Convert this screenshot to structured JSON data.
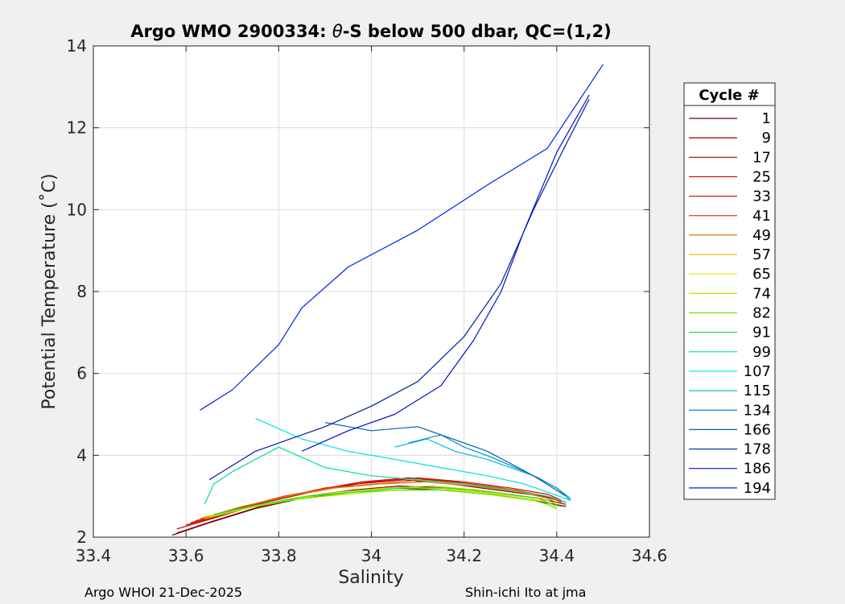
{
  "chart_data": {
    "type": "line",
    "title": "Argo WMO 2900334: θ-S below 500 dbar,  QC=(1,2)",
    "title_parts": {
      "prefix": "Argo WMO 2900334: ",
      "theta": "θ",
      "suffix": "-S below 500 dbar,  QC=(1,2)"
    },
    "xlabel": "Salinity",
    "ylabel": "Potential Temperature (˚C)",
    "xlim": [
      33.4,
      34.6
    ],
    "ylim": [
      2,
      14
    ],
    "x_ticks": [
      "33.4",
      "33.6",
      "33.8",
      "34",
      "34.2",
      "34.4",
      "34.6"
    ],
    "y_ticks": [
      "2",
      "4",
      "6",
      "8",
      "10",
      "12",
      "14"
    ],
    "grid": true,
    "legend_title": "Cycle #",
    "legend_position": "right-outside",
    "series": [
      {
        "name": "1",
        "color": "#6e0000",
        "points": [
          [
            33.57,
            2.05
          ],
          [
            33.65,
            2.35
          ],
          [
            33.75,
            2.7
          ],
          [
            33.85,
            2.95
          ],
          [
            33.95,
            3.1
          ],
          [
            34.05,
            3.2
          ],
          [
            34.15,
            3.15
          ],
          [
            34.25,
            3.05
          ],
          [
            34.35,
            2.9
          ],
          [
            34.42,
            2.75
          ]
        ]
      },
      {
        "name": "9",
        "color": "#8c0000",
        "points": [
          [
            33.58,
            2.1
          ],
          [
            33.66,
            2.4
          ],
          [
            33.76,
            2.75
          ],
          [
            33.86,
            3.0
          ],
          [
            33.96,
            3.15
          ],
          [
            34.06,
            3.25
          ],
          [
            34.16,
            3.2
          ],
          [
            34.26,
            3.1
          ],
          [
            34.36,
            2.95
          ],
          [
            34.42,
            2.8
          ]
        ]
      },
      {
        "name": "17",
        "color": "#b00000",
        "points": [
          [
            33.58,
            2.2
          ],
          [
            33.67,
            2.5
          ],
          [
            33.77,
            2.85
          ],
          [
            33.87,
            3.1
          ],
          [
            33.97,
            3.3
          ],
          [
            34.07,
            3.4
          ],
          [
            34.17,
            3.3
          ],
          [
            34.27,
            3.15
          ],
          [
            34.37,
            3.0
          ],
          [
            34.42,
            2.85
          ]
        ]
      },
      {
        "name": "25",
        "color": "#d00000",
        "points": [
          [
            33.6,
            2.3
          ],
          [
            33.68,
            2.55
          ],
          [
            33.78,
            2.9
          ],
          [
            33.88,
            3.15
          ],
          [
            33.98,
            3.35
          ],
          [
            34.08,
            3.45
          ],
          [
            34.18,
            3.35
          ],
          [
            34.28,
            3.2
          ],
          [
            34.38,
            3.0
          ],
          [
            34.41,
            2.9
          ]
        ]
      },
      {
        "name": "33",
        "color": "#e01010",
        "points": [
          [
            33.61,
            2.35
          ],
          [
            33.7,
            2.65
          ],
          [
            33.8,
            2.95
          ],
          [
            33.9,
            3.2
          ],
          [
            34.0,
            3.35
          ],
          [
            34.1,
            3.45
          ],
          [
            34.2,
            3.35
          ],
          [
            34.3,
            3.2
          ],
          [
            34.38,
            3.05
          ],
          [
            34.41,
            2.9
          ]
        ]
      },
      {
        "name": "41",
        "color": "#e84000",
        "points": [
          [
            33.62,
            2.4
          ],
          [
            33.71,
            2.7
          ],
          [
            33.81,
            3.0
          ],
          [
            33.91,
            3.2
          ],
          [
            34.01,
            3.3
          ],
          [
            34.11,
            3.4
          ],
          [
            34.21,
            3.3
          ],
          [
            34.31,
            3.15
          ],
          [
            34.38,
            3.0
          ],
          [
            34.41,
            2.85
          ]
        ]
      },
      {
        "name": "49",
        "color": "#d88000",
        "points": [
          [
            33.63,
            2.45
          ],
          [
            33.72,
            2.75
          ],
          [
            33.82,
            3.0
          ],
          [
            33.92,
            3.2
          ],
          [
            34.02,
            3.3
          ],
          [
            34.12,
            3.35
          ],
          [
            34.22,
            3.25
          ],
          [
            34.32,
            3.1
          ],
          [
            34.38,
            2.95
          ],
          [
            34.4,
            2.85
          ]
        ]
      },
      {
        "name": "57",
        "color": "#d8c000",
        "points": [
          [
            33.64,
            2.45
          ],
          [
            33.73,
            2.7
          ],
          [
            33.83,
            2.95
          ],
          [
            33.93,
            3.1
          ],
          [
            34.03,
            3.2
          ],
          [
            34.13,
            3.25
          ],
          [
            34.23,
            3.15
          ],
          [
            34.33,
            3.0
          ],
          [
            34.38,
            2.9
          ],
          [
            34.4,
            2.8
          ]
        ]
      },
      {
        "name": "65",
        "color": "#e8e800",
        "points": [
          [
            33.64,
            2.5
          ],
          [
            33.74,
            2.75
          ],
          [
            33.84,
            2.95
          ],
          [
            33.94,
            3.1
          ],
          [
            34.04,
            3.2
          ],
          [
            34.14,
            3.2
          ],
          [
            34.24,
            3.1
          ],
          [
            34.34,
            2.95
          ],
          [
            34.38,
            2.85
          ],
          [
            34.4,
            2.75
          ]
        ]
      },
      {
        "name": "74",
        "color": "#b8e800",
        "points": [
          [
            33.65,
            2.5
          ],
          [
            33.75,
            2.75
          ],
          [
            33.85,
            2.95
          ],
          [
            33.95,
            3.05
          ],
          [
            34.05,
            3.15
          ],
          [
            34.15,
            3.15
          ],
          [
            34.25,
            3.05
          ],
          [
            34.35,
            2.9
          ],
          [
            34.38,
            2.8
          ],
          [
            34.4,
            2.7
          ]
        ]
      },
      {
        "name": "82",
        "color": "#60e800",
        "points": [
          [
            33.66,
            2.55
          ],
          [
            33.76,
            2.8
          ],
          [
            33.86,
            2.95
          ],
          [
            33.96,
            3.1
          ],
          [
            34.06,
            3.15
          ],
          [
            34.16,
            3.15
          ],
          [
            34.26,
            3.05
          ],
          [
            34.35,
            2.9
          ],
          [
            34.38,
            2.8
          ],
          [
            34.4,
            2.7
          ]
        ]
      },
      {
        "name": "91",
        "color": "#20e040",
        "points": [
          [
            33.66,
            2.55
          ],
          [
            33.76,
            2.8
          ],
          [
            33.86,
            3.0
          ],
          [
            33.96,
            3.1
          ],
          [
            34.06,
            3.2
          ],
          [
            34.16,
            3.2
          ],
          [
            34.26,
            3.1
          ],
          [
            34.36,
            2.95
          ],
          [
            34.39,
            2.8
          ],
          [
            34.41,
            2.75
          ]
        ]
      },
      {
        "name": "99",
        "color": "#00e090",
        "points": [
          [
            33.64,
            2.8
          ],
          [
            33.66,
            3.3
          ],
          [
            33.7,
            3.6
          ],
          [
            33.75,
            3.9
          ],
          [
            33.8,
            4.2
          ],
          [
            33.9,
            3.7
          ],
          [
            34.0,
            3.5
          ],
          [
            34.1,
            3.4
          ],
          [
            34.2,
            3.3
          ],
          [
            34.3,
            3.15
          ],
          [
            34.38,
            3.0
          ],
          [
            34.42,
            2.85
          ]
        ]
      },
      {
        "name": "107",
        "color": "#00e0e0",
        "points": [
          [
            33.75,
            4.9
          ],
          [
            33.85,
            4.4
          ],
          [
            33.95,
            4.1
          ],
          [
            34.05,
            3.9
          ],
          [
            34.15,
            3.7
          ],
          [
            34.25,
            3.5
          ],
          [
            34.33,
            3.3
          ],
          [
            34.38,
            3.1
          ],
          [
            34.43,
            2.9
          ]
        ]
      },
      {
        "name": "115",
        "color": "#00b8e0",
        "points": [
          [
            34.05,
            4.2
          ],
          [
            34.12,
            4.4
          ],
          [
            34.18,
            4.1
          ],
          [
            34.25,
            3.9
          ],
          [
            34.3,
            3.7
          ],
          [
            34.35,
            3.5
          ],
          [
            34.4,
            3.2
          ],
          [
            34.43,
            2.95
          ]
        ]
      },
      {
        "name": "134",
        "color": "#0090c0",
        "points": [
          [
            34.08,
            4.3
          ],
          [
            34.15,
            4.5
          ],
          [
            34.2,
            4.2
          ],
          [
            34.26,
            3.95
          ],
          [
            34.31,
            3.7
          ],
          [
            34.36,
            3.45
          ],
          [
            34.4,
            3.2
          ],
          [
            34.43,
            2.9
          ]
        ]
      },
      {
        "name": "166",
        "color": "#0060b0",
        "points": [
          [
            33.9,
            4.8
          ],
          [
            34.0,
            4.6
          ],
          [
            34.1,
            4.7
          ],
          [
            34.2,
            4.3
          ],
          [
            34.25,
            4.1
          ],
          [
            34.3,
            3.8
          ],
          [
            34.35,
            3.5
          ],
          [
            34.42,
            3.0
          ]
        ]
      },
      {
        "name": "178",
        "color": "#002090",
        "points": [
          [
            33.65,
            3.4
          ],
          [
            33.75,
            4.1
          ],
          [
            33.9,
            4.7
          ],
          [
            34.0,
            5.2
          ],
          [
            34.1,
            5.8
          ],
          [
            34.2,
            6.9
          ],
          [
            34.28,
            8.2
          ],
          [
            34.35,
            10.0
          ],
          [
            34.42,
            11.6
          ],
          [
            34.47,
            12.7
          ]
        ]
      },
      {
        "name": "186",
        "color": "#0010d0",
        "points": [
          [
            33.85,
            4.1
          ],
          [
            33.95,
            4.6
          ],
          [
            34.05,
            5.0
          ],
          [
            34.15,
            5.7
          ],
          [
            34.22,
            6.8
          ],
          [
            34.28,
            8.0
          ],
          [
            34.33,
            9.5
          ],
          [
            34.4,
            11.4
          ],
          [
            34.47,
            12.8
          ]
        ]
      },
      {
        "name": "194",
        "color": "#0020f0",
        "points": [
          [
            33.63,
            5.1
          ],
          [
            33.7,
            5.6
          ],
          [
            33.8,
            6.7
          ],
          [
            33.85,
            7.6
          ],
          [
            33.95,
            8.6
          ],
          [
            34.1,
            9.5
          ],
          [
            34.25,
            10.6
          ],
          [
            34.38,
            11.5
          ],
          [
            34.5,
            13.55
          ]
        ]
      }
    ]
  },
  "footer": {
    "left": "Argo WHOI 21-Dec-2025",
    "right": "Shin-ichi Ito at jma"
  }
}
